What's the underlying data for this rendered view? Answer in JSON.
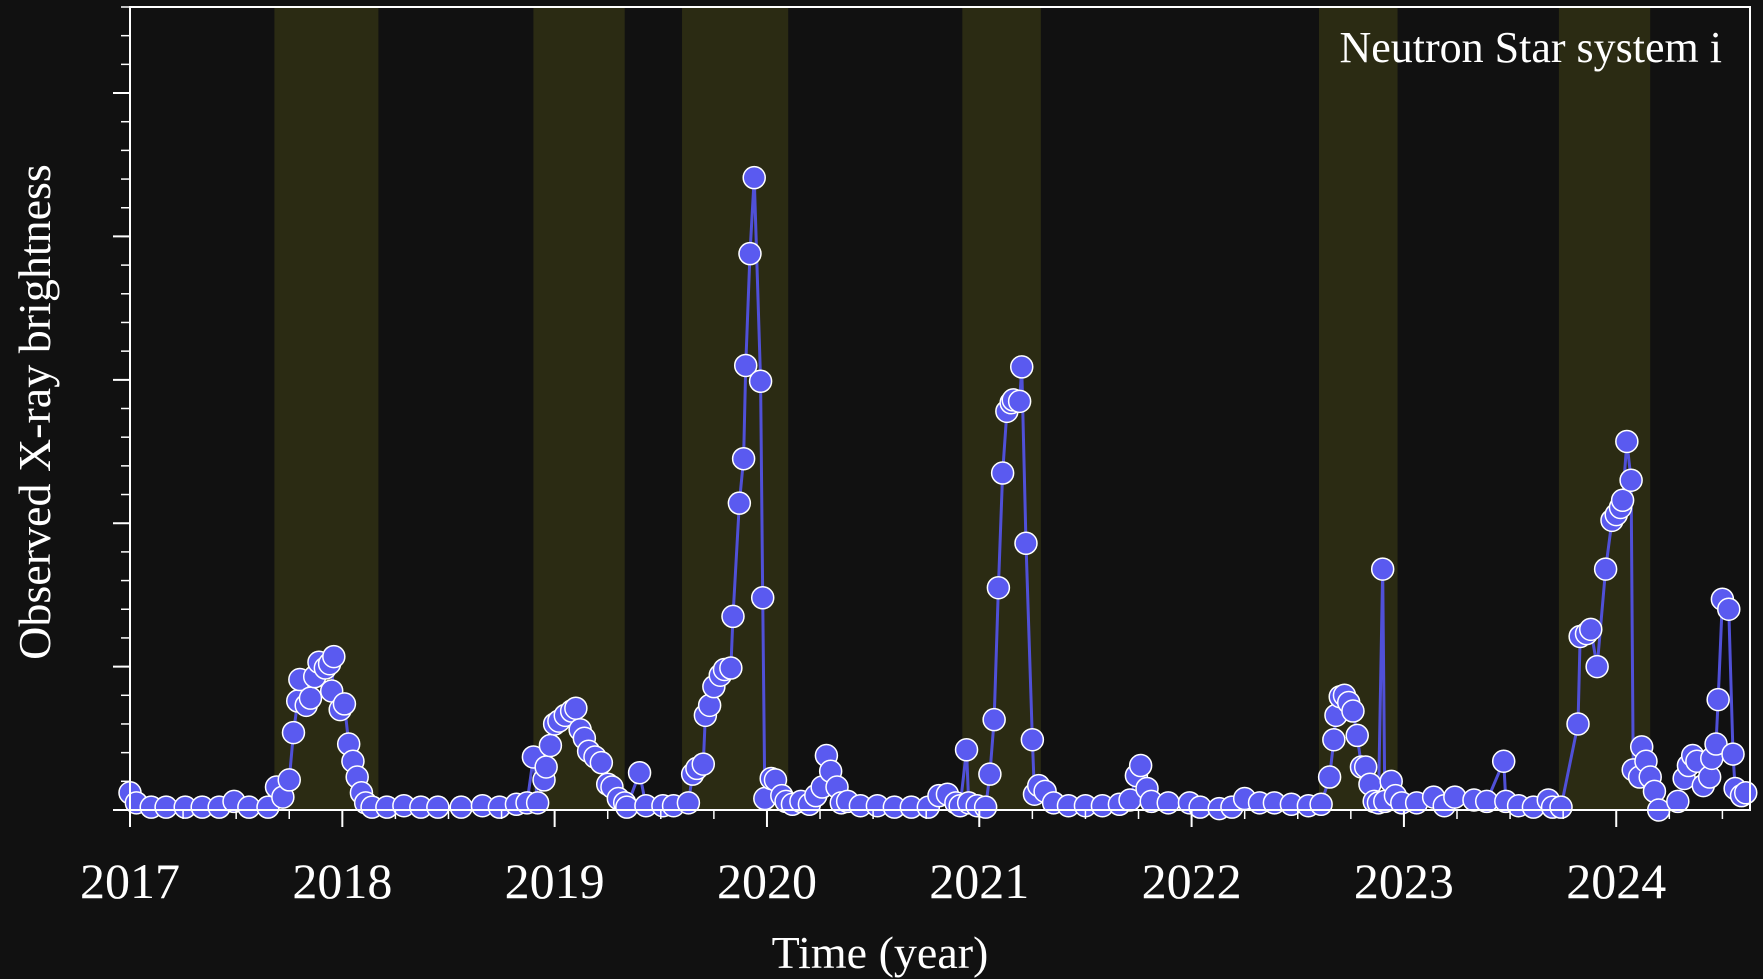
{
  "chart_data": {
    "type": "line",
    "annotation": "Neutron Star system i",
    "xlabel": "Time (year)",
    "ylabel": "Observed X-ray brightness",
    "xlim": [
      2017,
      2024.63
    ],
    "xticks": [
      2017,
      2018,
      2019,
      2020,
      2021,
      2022,
      2023,
      2024
    ],
    "xminor_step": 0.25,
    "ylim": [
      0,
      5.6
    ],
    "yticks": [
      0,
      1,
      2,
      3,
      4,
      5
    ],
    "yminor_step": 0.2,
    "bands": [
      [
        2017.68,
        2018.17
      ],
      [
        2018.9,
        2019.33
      ],
      [
        2019.6,
        2020.1
      ],
      [
        2020.92,
        2021.29
      ],
      [
        2022.6,
        2022.97
      ],
      [
        2023.73,
        2024.16
      ]
    ],
    "band_color": "#2b2b13",
    "series": [
      {
        "color": "#5a5af0",
        "line_color": "#5050d8",
        "x": [
          2017.0,
          2017.03,
          2017.1,
          2017.17,
          2017.26,
          2017.34,
          2017.42,
          2017.49,
          2017.56,
          2017.65,
          2017.69,
          2017.72,
          2017.75,
          2017.77,
          2017.79,
          2017.8,
          2017.83,
          2017.85,
          2017.87,
          2017.89,
          2017.92,
          2017.94,
          2017.96,
          2017.95,
          2017.99,
          2018.01,
          2018.03,
          2018.05,
          2018.07,
          2018.09,
          2018.11,
          2018.14,
          2018.21,
          2018.29,
          2018.37,
          2018.45,
          2018.56,
          2018.66,
          2018.74,
          2018.82,
          2018.87,
          2018.9,
          2018.92,
          2018.95,
          2018.96,
          2018.98,
          2019.0,
          2019.02,
          2019.05,
          2019.08,
          2019.1,
          2019.12,
          2019.14,
          2019.16,
          2019.19,
          2019.22,
          2019.25,
          2019.27,
          2019.3,
          2019.33,
          2019.34,
          2019.4,
          2019.43,
          2019.51,
          2019.56,
          2019.63,
          2019.65,
          2019.67,
          2019.7,
          2019.71,
          2019.73,
          2019.75,
          2019.78,
          2019.8,
          2019.83,
          2019.84,
          2019.87,
          2019.89,
          2019.9,
          2019.92,
          2019.94,
          2019.97,
          2019.98,
          2019.99,
          2020.02,
          2020.04,
          2020.07,
          2020.09,
          2020.12,
          2020.16,
          2020.2,
          2020.23,
          2020.26,
          2020.28,
          2020.3,
          2020.33,
          2020.35,
          2020.38,
          2020.44,
          2020.52,
          2020.6,
          2020.68,
          2020.76,
          2020.81,
          2020.85,
          2020.89,
          2020.91,
          2020.94,
          2020.95,
          2020.99,
          2021.03,
          2021.05,
          2021.07,
          2021.09,
          2021.11,
          2021.13,
          2021.15,
          2021.16,
          2021.19,
          2021.2,
          2021.22,
          2021.25,
          2021.26,
          2021.28,
          2021.31,
          2021.35,
          2021.42,
          2021.5,
          2021.58,
          2021.66,
          2021.71,
          2021.74,
          2021.76,
          2021.79,
          2021.81,
          2021.89,
          2021.99,
          2022.04,
          2022.13,
          2022.19,
          2022.25,
          2022.32,
          2022.39,
          2022.47,
          2022.55,
          2022.61,
          2022.65,
          2022.67,
          2022.68,
          2022.7,
          2022.72,
          2022.74,
          2022.76,
          2022.78,
          2022.8,
          2022.82,
          2022.84,
          2022.86,
          2022.88,
          2022.9,
          2022.91,
          2022.94,
          2022.96,
          2022.99,
          2023.06,
          2023.14,
          2023.19,
          2023.24,
          2023.33,
          2023.39,
          2023.47,
          2023.48,
          2023.54,
          2023.61,
          2023.68,
          2023.7,
          2023.74,
          2023.82,
          2023.83,
          2023.86,
          2023.88,
          2023.91,
          2023.95,
          2023.98,
          2024.0,
          2024.02,
          2024.03,
          2024.05,
          2024.07,
          2024.08,
          2024.11,
          2024.12,
          2024.14,
          2024.16,
          2024.18,
          2024.2,
          2024.29,
          2024.32,
          2024.34,
          2024.36,
          2024.38,
          2024.41,
          2024.44,
          2024.45,
          2024.47,
          2024.48,
          2024.5,
          2024.53,
          2024.55,
          2024.56,
          2024.59,
          2024.61
        ],
        "values": [
          0.12,
          0.05,
          0.02,
          0.02,
          0.02,
          0.02,
          0.02,
          0.06,
          0.02,
          0.02,
          0.16,
          0.09,
          0.21,
          0.54,
          0.76,
          0.91,
          0.73,
          0.78,
          0.93,
          1.03,
          0.99,
          1.02,
          1.07,
          0.83,
          0.7,
          0.74,
          0.46,
          0.34,
          0.23,
          0.12,
          0.05,
          0.02,
          0.02,
          0.03,
          0.02,
          0.02,
          0.02,
          0.03,
          0.02,
          0.04,
          0.05,
          0.37,
          0.05,
          0.21,
          0.3,
          0.45,
          0.6,
          0.62,
          0.66,
          0.69,
          0.71,
          0.56,
          0.5,
          0.41,
          0.37,
          0.33,
          0.18,
          0.16,
          0.08,
          0.05,
          0.02,
          0.26,
          0.03,
          0.03,
          0.03,
          0.05,
          0.25,
          0.29,
          0.32,
          0.66,
          0.73,
          0.86,
          0.94,
          0.98,
          0.99,
          1.35,
          2.14,
          2.45,
          3.1,
          3.88,
          4.41,
          2.99,
          1.48,
          0.08,
          0.22,
          0.21,
          0.1,
          0.06,
          0.04,
          0.06,
          0.04,
          0.1,
          0.16,
          0.38,
          0.27,
          0.16,
          0.05,
          0.06,
          0.03,
          0.03,
          0.02,
          0.02,
          0.02,
          0.1,
          0.11,
          0.05,
          0.03,
          0.42,
          0.05,
          0.03,
          0.02,
          0.25,
          0.63,
          1.55,
          2.35,
          2.78,
          2.84,
          2.86,
          2.85,
          3.09,
          1.86,
          0.49,
          0.11,
          0.17,
          0.13,
          0.05,
          0.03,
          0.03,
          0.03,
          0.04,
          0.07,
          0.24,
          0.31,
          0.15,
          0.06,
          0.05,
          0.05,
          0.02,
          0.01,
          0.02,
          0.08,
          0.05,
          0.05,
          0.04,
          0.03,
          0.04,
          0.23,
          0.49,
          0.66,
          0.79,
          0.8,
          0.75,
          0.69,
          0.52,
          0.3,
          0.3,
          0.18,
          0.06,
          0.05,
          1.68,
          0.06,
          0.2,
          0.1,
          0.05,
          0.05,
          0.09,
          0.03,
          0.09,
          0.07,
          0.06,
          0.34,
          0.06,
          0.03,
          0.02,
          0.07,
          0.02,
          0.02,
          0.6,
          1.21,
          1.23,
          1.26,
          1.0,
          1.68,
          2.02,
          2.06,
          2.11,
          2.16,
          2.57,
          2.3,
          0.28,
          0.23,
          0.44,
          0.34,
          0.23,
          0.13,
          0.0,
          0.06,
          0.22,
          0.31,
          0.38,
          0.34,
          0.17,
          0.23,
          0.36,
          0.46,
          0.77,
          1.47,
          1.4,
          0.39,
          0.15,
          0.1,
          0.12
        ]
      }
    ]
  }
}
